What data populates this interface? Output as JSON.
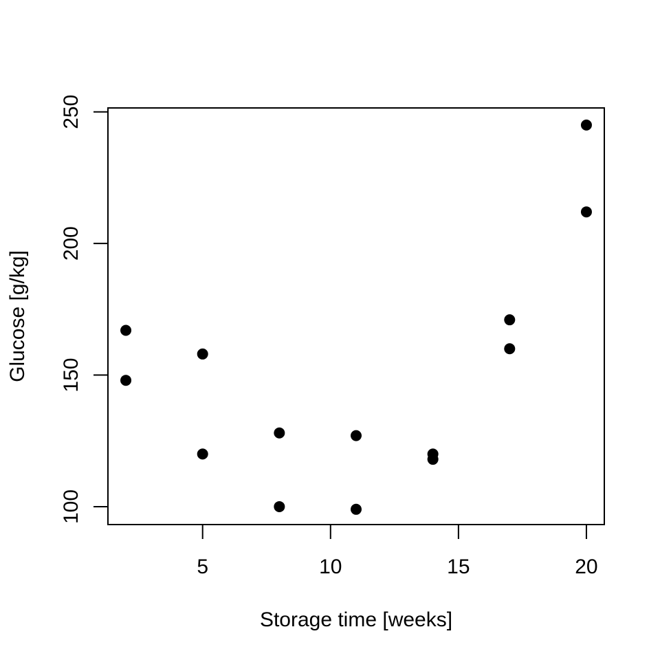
{
  "chart_data": {
    "type": "scatter",
    "title": "",
    "xlabel": "Storage time [weeks]",
    "ylabel": "Glucose [g/kg]",
    "xlim": [
      1.3,
      20.7
    ],
    "ylim": [
      93.2,
      251.5
    ],
    "xticks": [
      5,
      10,
      15,
      20
    ],
    "yticks": [
      100,
      150,
      200,
      250
    ],
    "grid": false,
    "point_color": "#000000",
    "points": [
      {
        "x": 2,
        "y": 167
      },
      {
        "x": 2,
        "y": 148
      },
      {
        "x": 5,
        "y": 158
      },
      {
        "x": 5,
        "y": 120
      },
      {
        "x": 8,
        "y": 128
      },
      {
        "x": 8,
        "y": 100
      },
      {
        "x": 11,
        "y": 127
      },
      {
        "x": 11,
        "y": 99
      },
      {
        "x": 14,
        "y": 120
      },
      {
        "x": 14,
        "y": 118
      },
      {
        "x": 17,
        "y": 171
      },
      {
        "x": 17,
        "y": 160
      },
      {
        "x": 20,
        "y": 245
      },
      {
        "x": 20,
        "y": 212
      }
    ]
  }
}
